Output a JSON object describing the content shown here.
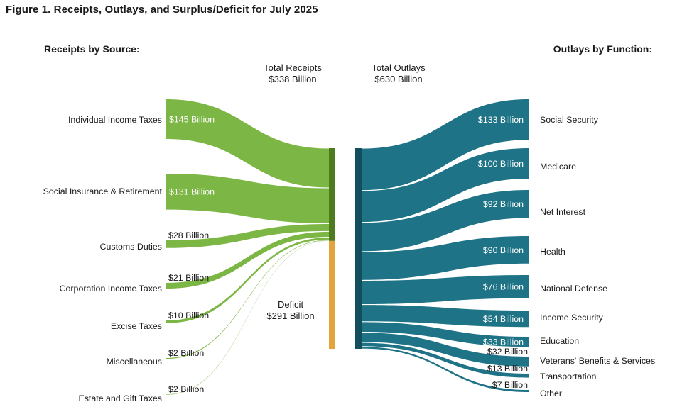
{
  "chart_data": {
    "type": "sankey",
    "title": "Figure 1. Receipts, Outlays, and Surplus/Deficit for July 2025",
    "unit": "USD billions",
    "left_group": "Receipts by Source:",
    "right_group": "Outlays by Function:",
    "totals": {
      "receipts": {
        "label": "Total Receipts",
        "value": 338,
        "text": "$338 Billion"
      },
      "outlays": {
        "label": "Total Outlays",
        "value": 630,
        "text": "$630 Billion"
      },
      "deficit": {
        "label": "Deficit",
        "value": 291,
        "text": "$291 Billion"
      }
    },
    "receipts": [
      {
        "label": "Individual Income Taxes",
        "value": 145,
        "value_text": "$145 Billion",
        "value_label_placement": "inside"
      },
      {
        "label": "Social Insurance & Retirement",
        "value": 131,
        "value_text": "$131 Billion",
        "value_label_placement": "inside"
      },
      {
        "label": "Customs Duties",
        "value": 28,
        "value_text": "$28 Billion",
        "value_label_placement": "above"
      },
      {
        "label": "Corporation Income Taxes",
        "value": 21,
        "value_text": "$21 Billion",
        "value_label_placement": "above"
      },
      {
        "label": "Excise Taxes",
        "value": 10,
        "value_text": "$10 Billion",
        "value_label_placement": "above"
      },
      {
        "label": "Miscellaneous",
        "value": 2,
        "value_text": "$2 Billion",
        "value_label_placement": "above"
      },
      {
        "label": "Estate and Gift Taxes",
        "value": 2,
        "value_text": "$2 Billion",
        "value_label_placement": "above"
      }
    ],
    "outlays": [
      {
        "label": "Social Security",
        "value": 133,
        "value_text": "$133 Billion",
        "value_label_placement": "inside"
      },
      {
        "label": "Medicare",
        "value": 100,
        "value_text": "$100 Billion",
        "value_label_placement": "inside"
      },
      {
        "label": "Net Interest",
        "value": 92,
        "value_text": "$92 Billion",
        "value_label_placement": "inside"
      },
      {
        "label": "Health",
        "value": 90,
        "value_text": "$90 Billion",
        "value_label_placement": "inside"
      },
      {
        "label": "National Defense",
        "value": 76,
        "value_text": "$76 Billion",
        "value_label_placement": "inside"
      },
      {
        "label": "Income Security",
        "value": 54,
        "value_text": "$54 Billion",
        "value_label_placement": "inside"
      },
      {
        "label": "Education",
        "value": 33,
        "value_text": "$33 Billion",
        "value_label_placement": "inside"
      },
      {
        "label": "Veterans' Benefits & Services",
        "value": 32,
        "value_text": "$32 Billion",
        "value_label_placement": "above"
      },
      {
        "label": "Transportation",
        "value": 13,
        "value_text": "$13 Billion",
        "value_label_placement": "above"
      },
      {
        "label": "Other",
        "value": 7,
        "value_text": "$7 Billion",
        "value_label_placement": "above"
      }
    ],
    "colors": {
      "receipts_flow": "#7cb644",
      "receipts_node": "#4d7c1f",
      "deficit_bar": "#e3a33d",
      "outlays_flow": "#1e7386",
      "outlays_node": "#134e5c",
      "value_text_inside": "#ffffff",
      "text": "#1a1a1a"
    }
  }
}
